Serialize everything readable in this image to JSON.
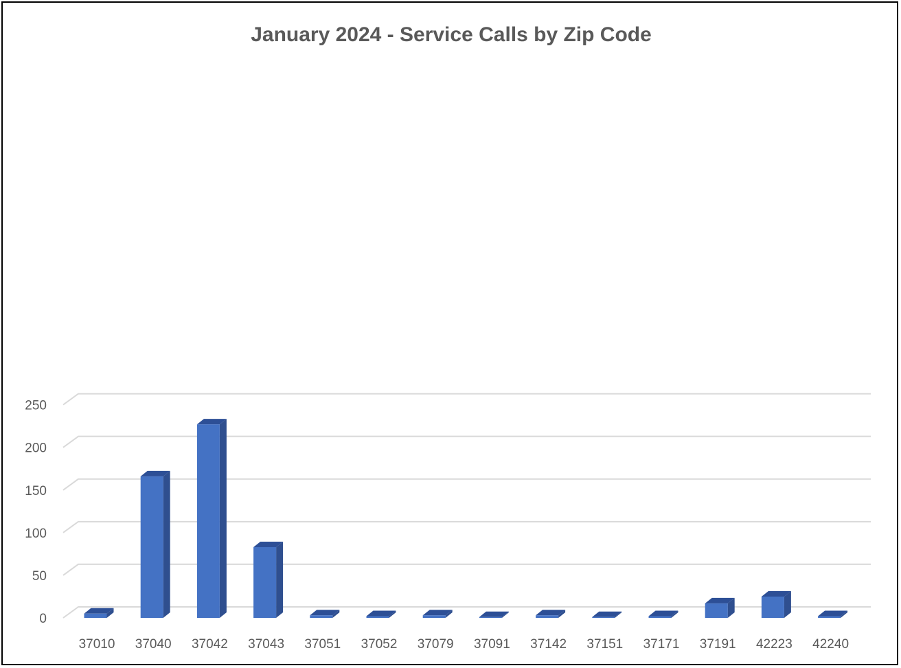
{
  "chart_data": {
    "type": "bar",
    "title": "January 2024 - Service Calls by Zip Code",
    "xlabel": "",
    "ylabel": "",
    "categories": [
      "37010",
      "37040",
      "37042",
      "37043",
      "37051",
      "37052",
      "37079",
      "37091",
      "37142",
      "37151",
      "37171",
      "37191",
      "42223",
      "42240"
    ],
    "values": [
      5,
      166,
      227,
      83,
      3,
      2,
      3,
      1,
      3,
      1,
      2,
      17,
      25,
      2
    ],
    "ylim": [
      0,
      250
    ],
    "yticks": [
      "0",
      "50",
      "100",
      "150",
      "200",
      "250"
    ],
    "grid": true,
    "legend": "none",
    "three_d": true,
    "colors": {
      "bar_front": "#4472c4",
      "bar_side": "#2f4f8f",
      "bar_top": "#2d4f96",
      "grid": "#d9d9d9",
      "text": "#595959"
    }
  }
}
